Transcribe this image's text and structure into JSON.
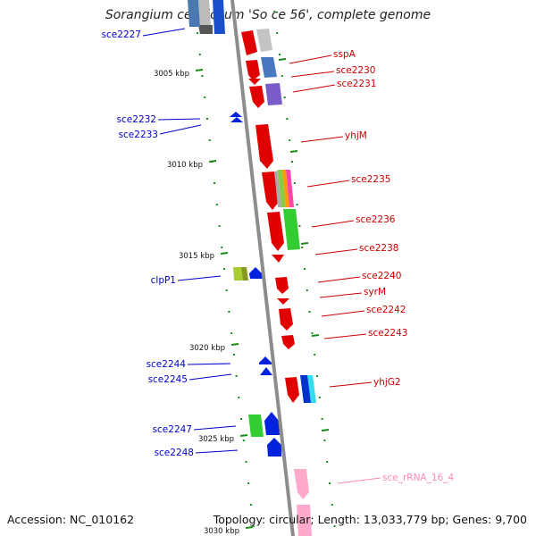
{
  "title": "Sorangium cellulosum 'So ce 56', complete genome",
  "footer": {
    "accession": "Accession: NC_010162",
    "summary": "Topology: circular; Length: 13,033,779 bp; Genes: 9,700"
  },
  "colors": {
    "backbone": "#8c8c8c",
    "tick": "#1a8a1a",
    "left_label": "#0000cc",
    "right_label": "#cc0000",
    "rrna_label": "#ff88bb"
  },
  "ticks": [
    {
      "label": "3005 kbp",
      "kbp": 3005
    },
    {
      "label": "3010 kbp",
      "kbp": 3010
    },
    {
      "label": "3015 kbp",
      "kbp": 3015
    },
    {
      "label": "3020 kbp",
      "kbp": 3020
    },
    {
      "label": "3025 kbp",
      "kbp": 3025
    },
    {
      "label": "3030 kbp",
      "kbp": 3030
    }
  ],
  "left_labels": [
    {
      "name": "sce2227"
    },
    {
      "name": "sce2232"
    },
    {
      "name": "sce2233"
    },
    {
      "name": "clpP1"
    },
    {
      "name": "sce2244"
    },
    {
      "name": "sce2245"
    },
    {
      "name": "sce2247"
    },
    {
      "name": "sce2248"
    }
  ],
  "right_labels": [
    {
      "name": "sspA"
    },
    {
      "name": "sce2230"
    },
    {
      "name": "sce2231"
    },
    {
      "name": "yhjM"
    },
    {
      "name": "sce2235"
    },
    {
      "name": "sce2236"
    },
    {
      "name": "sce2238"
    },
    {
      "name": "sce2240"
    },
    {
      "name": "syrM"
    },
    {
      "name": "sce2242"
    },
    {
      "name": "sce2243"
    },
    {
      "name": "yhjG2"
    },
    {
      "name": "sce_rRNA_16_4"
    }
  ]
}
